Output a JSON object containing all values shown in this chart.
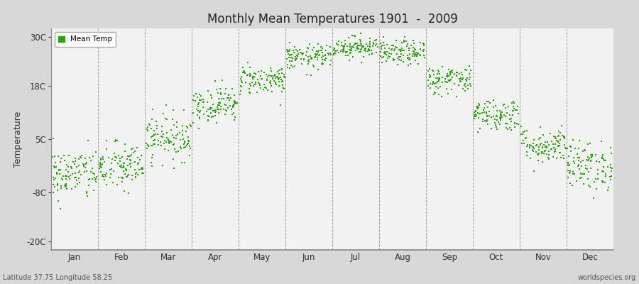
{
  "title": "Monthly Mean Temperatures 1901  -  2009",
  "ylabel": "Temperature",
  "yticks": [
    -20,
    -8,
    5,
    18,
    30
  ],
  "ytick_labels": [
    "-20C",
    "-8C",
    "5C",
    "18C",
    "30C"
  ],
  "ylim": [
    -22,
    32
  ],
  "months": [
    "Jan",
    "Feb",
    "Mar",
    "Apr",
    "May",
    "Jun",
    "Jul",
    "Aug",
    "Sep",
    "Oct",
    "Nov",
    "Dec"
  ],
  "dot_color": "#22aa00",
  "dot_size": 2.5,
  "background_color": "#d8d8d8",
  "plot_bg_color": "#f2f2f2",
  "legend_label": "Mean Temp",
  "subtitle_left": "Latitude 37.75 Longitude 58.25",
  "subtitle_right": "worldspecies.org",
  "monthly_means": [
    -3.5,
    -1.8,
    5.5,
    13.5,
    19.5,
    25.0,
    27.5,
    26.0,
    19.5,
    11.0,
    3.5,
    -1.5
  ],
  "monthly_stds": [
    3.2,
    3.0,
    2.8,
    2.2,
    1.8,
    1.5,
    1.3,
    1.5,
    1.8,
    2.0,
    2.2,
    3.0
  ],
  "n_years": 109,
  "seed": 42
}
